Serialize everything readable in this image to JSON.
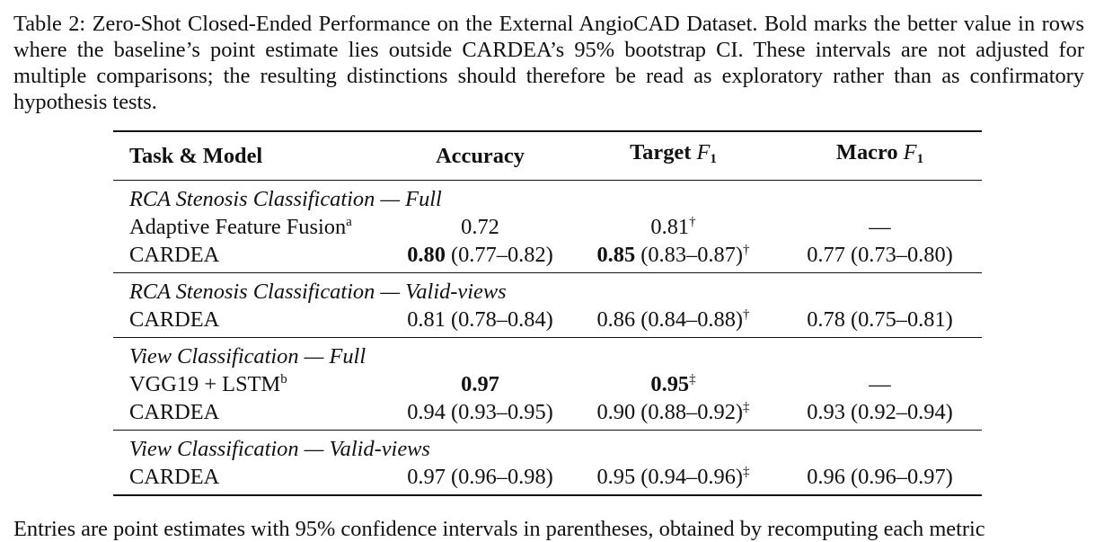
{
  "caption": "Table 2: Zero-Shot Closed-Ended Performance on the External AngioCAD Dataset. Bold marks the better value in rows where the baseline’s point estimate lies outside CARDEA’s 95% bootstrap CI. These intervals are not adjusted for multiple comparisons; the resulting distinctions should therefore be read as exploratory rather than as confirmatory hypothesis tests.",
  "header": {
    "task_model": "Task & Model",
    "accuracy": "Accuracy",
    "target_f1_word": "Target",
    "macro_f1_word": "Macro",
    "f_symbol": "F",
    "f_sub": "1"
  },
  "groups": [
    {
      "title": "RCA Stenosis Classification — Full",
      "rows": [
        {
          "model": "Adaptive Feature Fusion",
          "model_sup": "a",
          "acc_point": "",
          "acc_rest": "0.72",
          "tf1_point": "",
          "tf1_rest": "0.81",
          "tf1_sup": "†",
          "mf1": "—"
        },
        {
          "model": "CARDEA",
          "model_sup": "",
          "acc_point": "0.80",
          "acc_rest": " (0.77–0.82)",
          "tf1_point": "0.85",
          "tf1_rest": " (0.83–0.87)",
          "tf1_sup": "†",
          "mf1": "0.77 (0.73–0.80)"
        }
      ]
    },
    {
      "title": "RCA Stenosis Classification — Valid-views",
      "rows": [
        {
          "model": "CARDEA",
          "model_sup": "",
          "acc_point": "",
          "acc_rest": "0.81 (0.78–0.84)",
          "tf1_point": "",
          "tf1_rest": "0.86 (0.84–0.88)",
          "tf1_sup": "†",
          "mf1": "0.78 (0.75–0.81)"
        }
      ]
    },
    {
      "title": "View Classification — Full",
      "rows": [
        {
          "model": "VGG19 + LSTM",
          "model_sup": "b",
          "acc_point": "0.97",
          "acc_rest": "",
          "tf1_point": "0.95",
          "tf1_rest": "",
          "tf1_sup": "‡",
          "mf1": "—"
        },
        {
          "model": "CARDEA",
          "model_sup": "",
          "acc_point": "",
          "acc_rest": "0.94 (0.93–0.95)",
          "tf1_point": "",
          "tf1_rest": "0.90 (0.88–0.92)",
          "tf1_sup": "‡",
          "mf1": "0.93 (0.92–0.94)"
        }
      ]
    },
    {
      "title": "View Classification — Valid-views",
      "rows": [
        {
          "model": "CARDEA",
          "model_sup": "",
          "acc_point": "",
          "acc_rest": "0.97 (0.96–0.98)",
          "tf1_point": "",
          "tf1_rest": "0.95 (0.94–0.96)",
          "tf1_sup": "‡",
          "mf1": "0.96 (0.96–0.97)"
        }
      ]
    }
  ],
  "footer_text": "Entries are point estimates with 95% confidence intervals in parentheses, obtained by recomputing each metric"
}
